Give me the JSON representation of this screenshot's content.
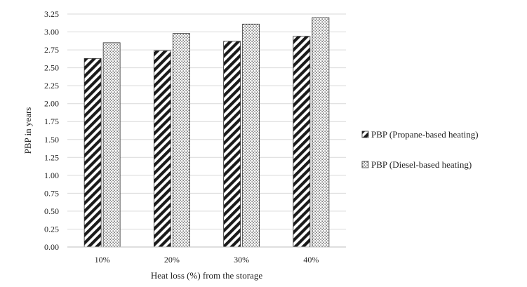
{
  "chart_data": {
    "type": "bar",
    "categories": [
      "10%",
      "20%",
      "30%",
      "40%"
    ],
    "series": [
      {
        "name": "PBP (Propane-based heating)",
        "values": [
          2.63,
          2.74,
          2.87,
          2.94
        ],
        "pattern": "diagonal-stripes"
      },
      {
        "name": "PBP (Diesel-based heating)",
        "values": [
          2.85,
          2.98,
          3.11,
          3.2
        ],
        "pattern": "dots"
      }
    ],
    "title": "",
    "xlabel": "Heat loss (%) from the storage",
    "ylabel": "PBP in years",
    "ylim": [
      0,
      3.25
    ],
    "yticks": [
      "0.00",
      "0.25",
      "0.50",
      "0.75",
      "1.00",
      "1.25",
      "1.50",
      "1.75",
      "2.00",
      "2.25",
      "2.50",
      "2.75",
      "3.00",
      "3.25"
    ],
    "grid": true,
    "legend_position": "right",
    "colors": {
      "bar_fill": "#1a1a1a",
      "grid": "#d9d9d9",
      "background": "#ffffff"
    }
  }
}
